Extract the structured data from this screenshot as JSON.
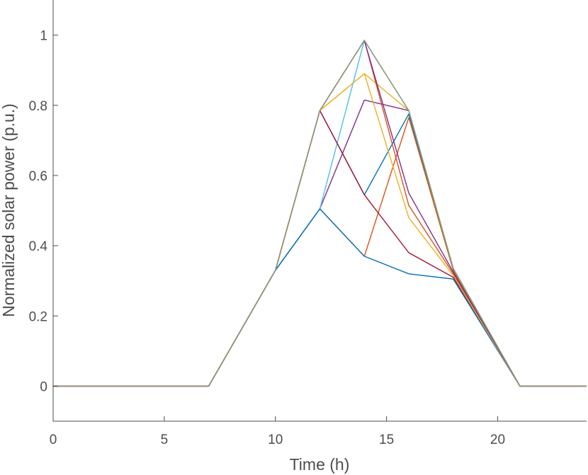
{
  "chart_data": {
    "type": "line",
    "title": "",
    "xlabel": "Time (h)",
    "ylabel": "Normalized solar power (p.u.)",
    "xlim": [
      0,
      24
    ],
    "ylim": [
      -0.1,
      1.1
    ],
    "xticks": [
      0,
      5,
      10,
      15,
      20
    ],
    "xtick_labels": [
      "0",
      "5",
      "10",
      "15",
      "20"
    ],
    "yticks": [
      0,
      0.2,
      0.4,
      0.6,
      0.8,
      1
    ],
    "ytick_labels": [
      "0",
      "0.2",
      "0.4",
      "0.6",
      "0.8",
      "1"
    ],
    "grid": false,
    "legend": "none",
    "x": [
      0,
      7,
      10,
      12,
      14,
      16,
      18,
      21,
      24
    ],
    "series": [
      {
        "color": "#0072BD",
        "values": [
          0,
          0,
          0.33,
          0.785,
          0.545,
          0.775,
          0.335,
          0,
          0
        ]
      },
      {
        "color": "#D95319",
        "values": [
          0,
          0,
          0.33,
          0.505,
          0.37,
          0.765,
          0.33,
          0,
          0
        ]
      },
      {
        "color": "#EDB120",
        "values": [
          0,
          0,
          0.33,
          0.785,
          0.89,
          0.785,
          0.335,
          0,
          0
        ]
      },
      {
        "color": "#7E2F8E",
        "values": [
          0,
          0,
          0.33,
          0.505,
          0.815,
          0.785,
          0.335,
          0,
          0
        ]
      },
      {
        "color": "#77AC30",
        "values": [
          0,
          0,
          0.33,
          0.785,
          0.985,
          0.785,
          0.335,
          0,
          0
        ]
      },
      {
        "color": "#4DBEEE",
        "values": [
          0,
          0,
          0.33,
          0.505,
          0.985,
          0.785,
          0.335,
          0,
          0
        ]
      },
      {
        "color": "#A2142F",
        "values": [
          0,
          0,
          0.33,
          0.785,
          0.545,
          0.38,
          0.31,
          0,
          0
        ]
      },
      {
        "color": "#0072BD",
        "values": [
          0,
          0,
          0.33,
          0.505,
          0.37,
          0.32,
          0.305,
          0,
          0
        ]
      },
      {
        "color": "#D95319",
        "values": [
          0,
          0,
          0.33,
          0.785,
          0.985,
          0.515,
          0.32,
          0,
          0
        ]
      },
      {
        "color": "#EDB120",
        "values": [
          0,
          0,
          0.33,
          0.785,
          0.89,
          0.48,
          0.315,
          0,
          0
        ]
      },
      {
        "color": "#7E2F8E",
        "values": [
          0,
          0,
          0.33,
          0.785,
          0.985,
          0.55,
          0.325,
          0,
          0
        ]
      },
      {
        "color": "#8F9A78",
        "values": [
          0,
          0,
          0.33,
          0.785,
          0.985,
          0.785,
          0.335,
          0,
          0
        ]
      }
    ]
  }
}
